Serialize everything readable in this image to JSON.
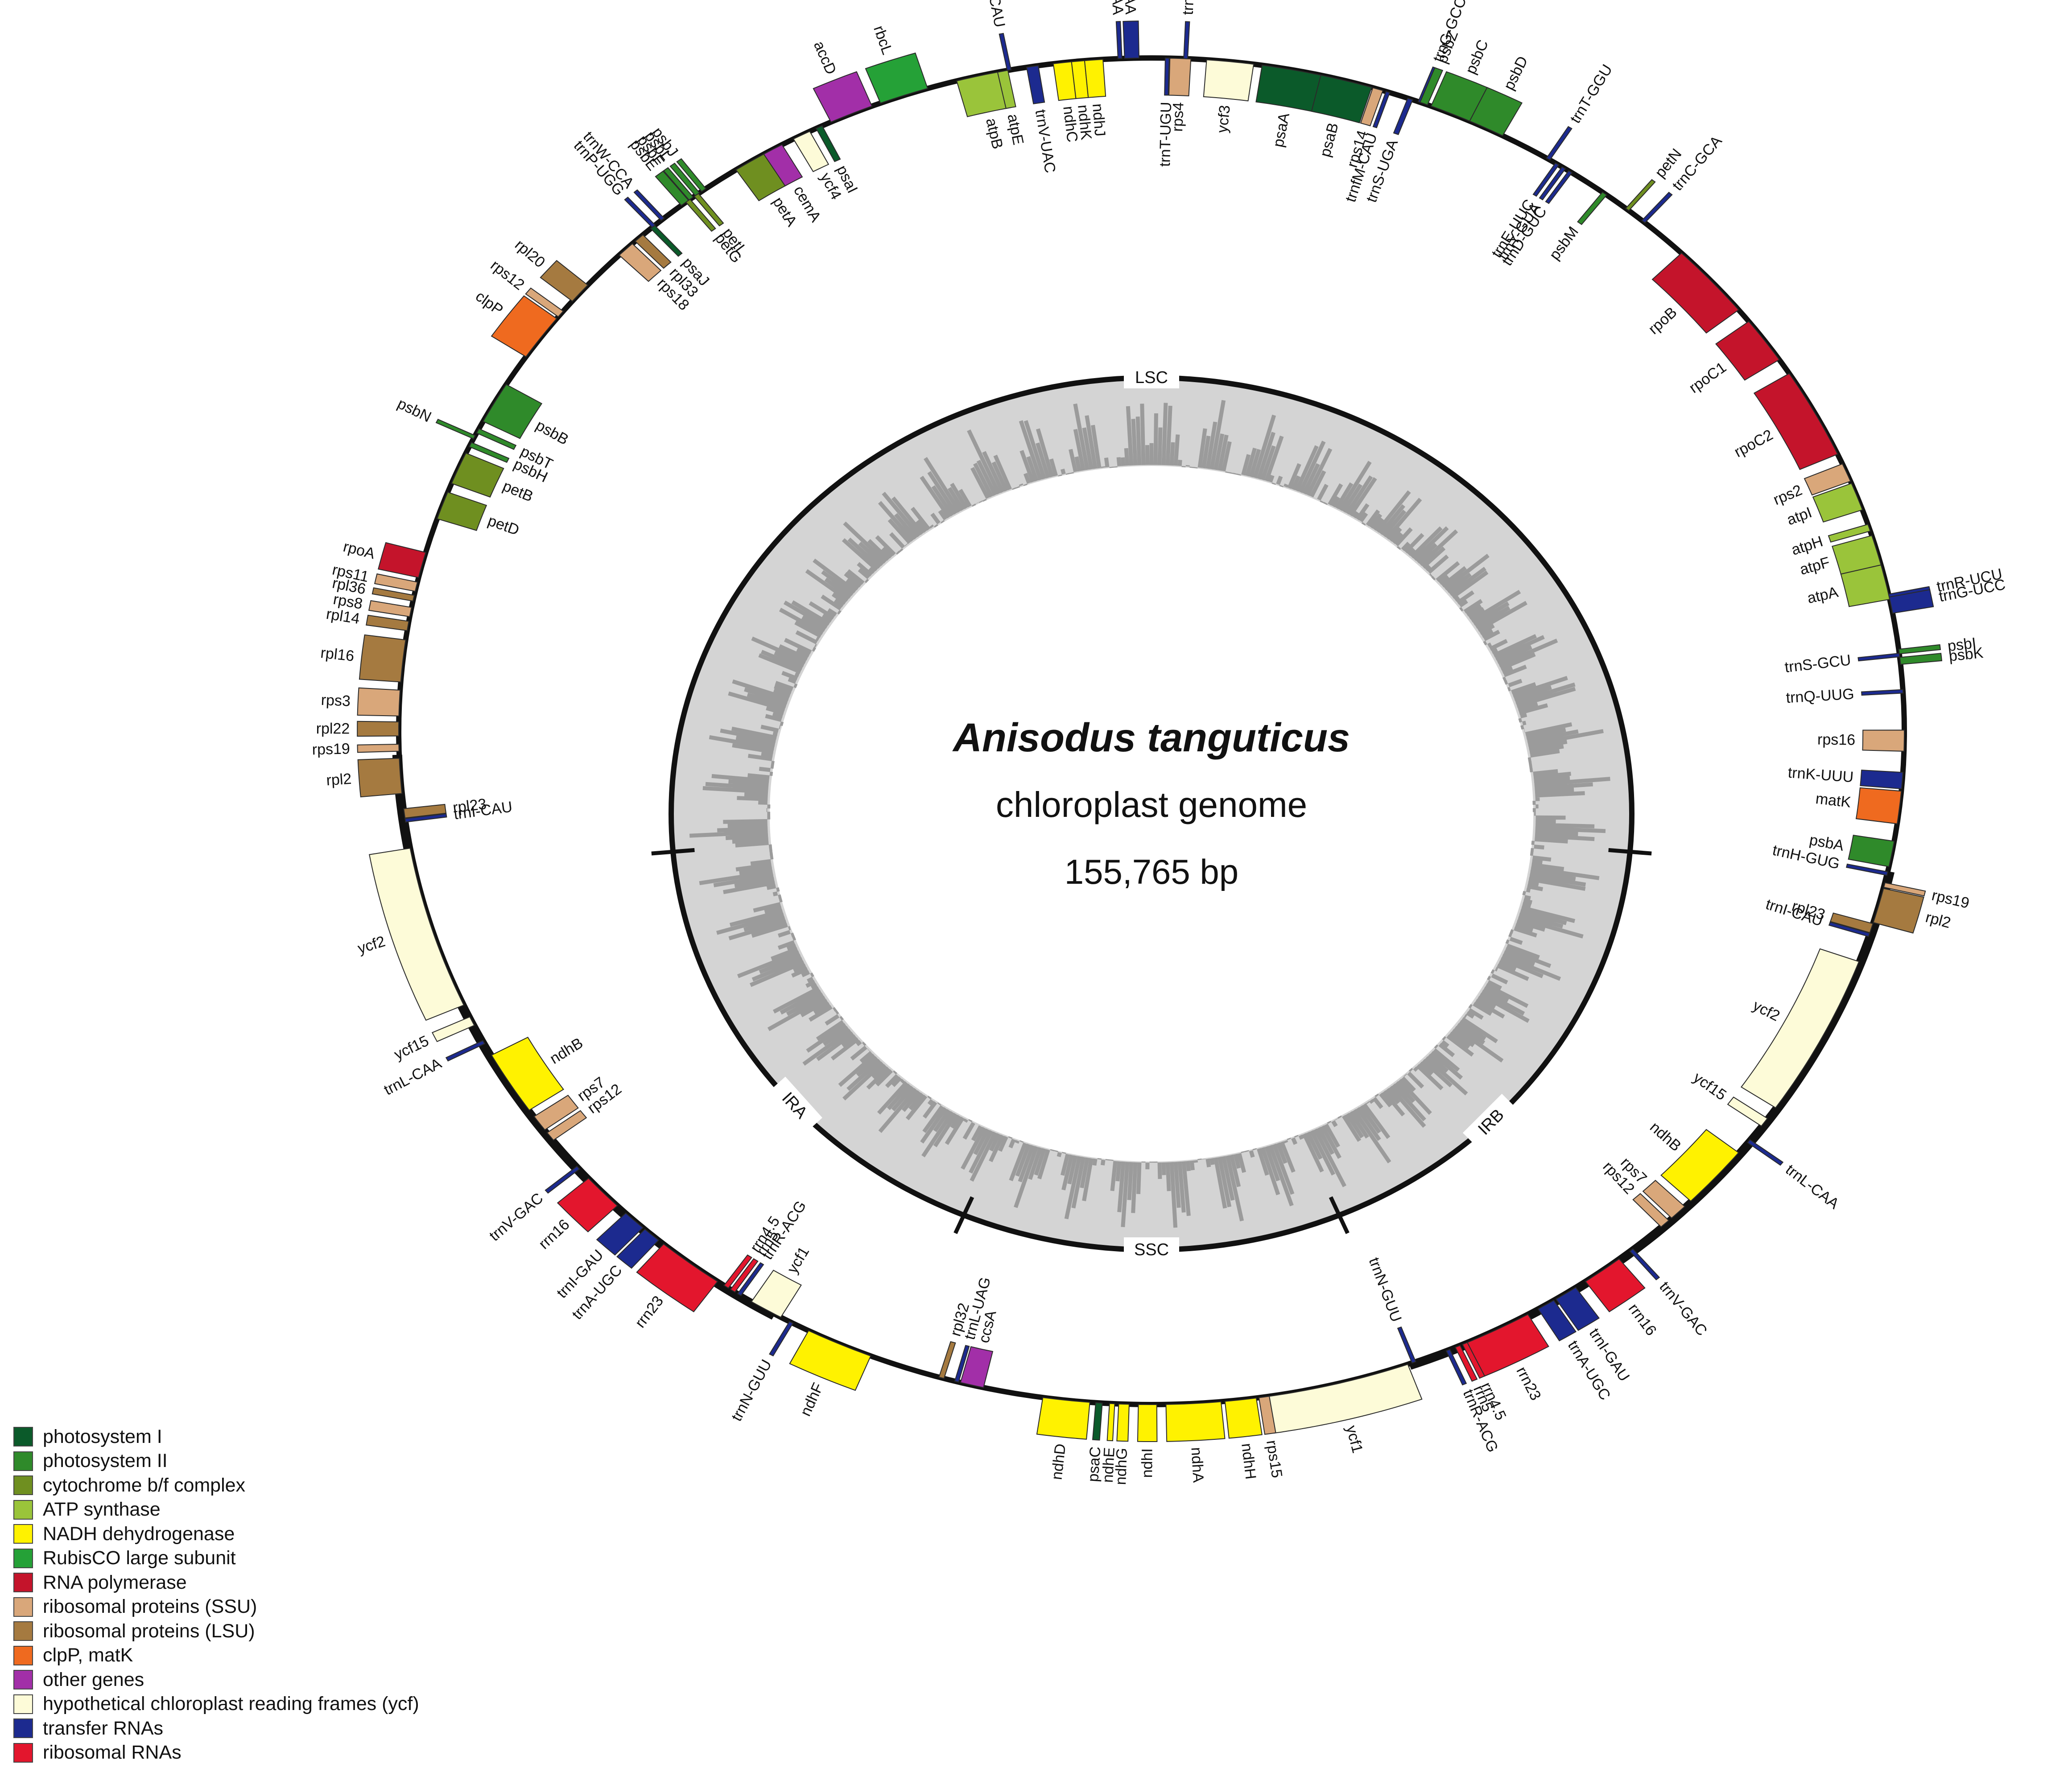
{
  "genome": {
    "species": "Anisodus tanguticus",
    "subtitle": "chloroplast genome",
    "size": "155,765 bp"
  },
  "regions": [
    "LSC",
    "IRB",
    "SSC",
    "IRA"
  ],
  "colors": {
    "psI": "#0b5a2a",
    "psII": "#2f8a2a",
    "cytb6f": "#6f8f20",
    "atp": "#9ac43a",
    "ndh": "#fff200",
    "rbcL": "#25a137",
    "rpo": "#c4142b",
    "ssu": "#d9a77a",
    "lsu": "#a57a40",
    "clp": "#ef6a1f",
    "other": "#a22fa8",
    "ycf": "#fdfbd8",
    "trna": "#1c2a8f",
    "rrna": "#e3162d"
  },
  "legend": [
    {
      "label": "photosystem I",
      "color": "#0b5a2a"
    },
    {
      "label": "photosystem II",
      "color": "#2f8a2a"
    },
    {
      "label": "cytochrome b/f complex",
      "color": "#6f8f20"
    },
    {
      "label": "ATP synthase",
      "color": "#9ac43a"
    },
    {
      "label": "NADH dehydrogenase",
      "color": "#fff200"
    },
    {
      "label": "RubisCO large subunit",
      "color": "#25a137"
    },
    {
      "label": "RNA polymerase",
      "color": "#c4142b"
    },
    {
      "label": "ribosomal proteins (SSU)",
      "color": "#d9a77a"
    },
    {
      "label": "ribosomal proteins (LSU)",
      "color": "#a57a40"
    },
    {
      "label": "clpP, matK",
      "color": "#ef6a1f"
    },
    {
      "label": "other genes",
      "color": "#a22fa8"
    },
    {
      "label": "hypothetical chloroplast reading frames (ycf)",
      "color": "#fdfbd8"
    },
    {
      "label": "transfer RNAs",
      "color": "#1c2a8f"
    },
    {
      "label": "ribosomal RNAs",
      "color": "#e3162d"
    }
  ],
  "genes": [
    {
      "name": "trnG-GCC",
      "a": 20.9,
      "w": 0.3,
      "t": "trna",
      "s": "out"
    },
    {
      "name": "psbZ",
      "a": 21.2,
      "w": 0.6,
      "t": "psII",
      "s": "out"
    },
    {
      "name": "psbC",
      "a": 23.4,
      "w": 3.2,
      "t": "psII",
      "s": "out"
    },
    {
      "name": "psbD",
      "a": 26.4,
      "w": 2.8,
      "t": "psII",
      "s": "out"
    },
    {
      "name": "trnT-GGU",
      "a": 31.8,
      "w": 0.3,
      "t": "trna",
      "s": "out"
    },
    {
      "name": "petN",
      "a": 39.2,
      "w": 0.3,
      "t": "cytb6f",
      "s": "out"
    },
    {
      "name": "trnC-GCA",
      "a": 40.8,
      "w": 0.3,
      "t": "trna",
      "s": "out"
    },
    {
      "name": "trnE-UUC",
      "a": 32.6,
      "w": 0.3,
      "t": "trna",
      "s": "in"
    },
    {
      "name": "trnY-GUA",
      "a": 33.2,
      "w": 0.3,
      "t": "trna",
      "s": "in"
    },
    {
      "name": "trnD-GUC",
      "a": 33.8,
      "w": 0.3,
      "t": "trna",
      "s": "in"
    },
    {
      "name": "psbM",
      "a": 37.0,
      "w": 0.4,
      "t": "psII",
      "s": "in"
    },
    {
      "name": "trnS-UGA",
      "a": 20.1,
      "w": 0.4,
      "t": "trna",
      "s": "in"
    },
    {
      "name": "rpoB",
      "a": 48.0,
      "w": 6.5,
      "t": "rpo",
      "s": "in"
    },
    {
      "name": "rpoC1",
      "a": 54.5,
      "w": 4.0,
      "t": "rpo",
      "s": "in"
    },
    {
      "name": "rpoC2",
      "a": 61.8,
      "w": 7.8,
      "t": "rpo",
      "s": "in"
    },
    {
      "name": "rps2",
      "a": 67.4,
      "w": 1.6,
      "t": "ssu",
      "s": "in"
    },
    {
      "name": "atpI",
      "a": 69.6,
      "w": 2.4,
      "t": "atp",
      "s": "in"
    },
    {
      "name": "atpH",
      "a": 72.4,
      "w": 0.6,
      "t": "atp",
      "s": "in"
    },
    {
      "name": "atpF",
      "a": 74.4,
      "w": 2.6,
      "t": "atp",
      "s": "in"
    },
    {
      "name": "atpA",
      "a": 77.2,
      "w": 3.0,
      "t": "atp",
      "s": "in"
    },
    {
      "name": "trnR-UCU",
      "a": 78.4,
      "w": 0.3,
      "t": "trna",
      "s": "out"
    },
    {
      "name": "trnG-UCC",
      "a": 79.2,
      "w": 1.4,
      "t": "trna",
      "s": "out"
    },
    {
      "name": "trnS-GCU",
      "a": 83.5,
      "w": 0.3,
      "t": "trna",
      "s": "in"
    },
    {
      "name": "psbI",
      "a": 83.2,
      "w": 0.4,
      "t": "psII",
      "s": "out"
    },
    {
      "name": "psbK",
      "a": 84.0,
      "w": 0.6,
      "t": "psII",
      "s": "out"
    },
    {
      "name": "trnQ-UUG",
      "a": 86.6,
      "w": 0.3,
      "t": "trna",
      "s": "in"
    },
    {
      "name": "rps16",
      "a": 90.8,
      "w": 1.8,
      "t": "ssu",
      "s": "in"
    },
    {
      "name": "trnK-UUU",
      "a": 94.2,
      "w": 1.4,
      "t": "trna",
      "s": "in"
    },
    {
      "name": "matK",
      "a": 96.5,
      "w": 2.8,
      "t": "clp",
      "s": "in"
    },
    {
      "name": "psbA",
      "a": 100.5,
      "w": 2.2,
      "t": "psII",
      "s": "in"
    },
    {
      "name": "trnH-GUG",
      "a": 102.2,
      "w": 0.3,
      "t": "trna",
      "s": "in"
    },
    {
      "name": "rps19",
      "a": 103.2,
      "w": 0.4,
      "t": "ssu",
      "s": "out"
    },
    {
      "name": "rpl2",
      "a": 105.0,
      "w": 3.0,
      "t": "lsu",
      "s": "out"
    },
    {
      "name": "rpl23",
      "a": 107.0,
      "w": 0.8,
      "t": "lsu",
      "s": "in"
    },
    {
      "name": "trnI-CAU",
      "a": 107.6,
      "w": 0.3,
      "t": "trna",
      "s": "in"
    },
    {
      "name": "ycf2",
      "a": 117.0,
      "w": 14.0,
      "t": "ycf",
      "s": "in"
    },
    {
      "name": "ycf15",
      "a": 125.5,
      "w": 0.8,
      "t": "ycf",
      "s": "in"
    },
    {
      "name": "trnL-CAA",
      "a": 127.5,
      "w": 0.3,
      "t": "trna",
      "s": "out"
    },
    {
      "name": "ndhB",
      "a": 131.5,
      "w": 5.5,
      "t": "ndh",
      "s": "in"
    },
    {
      "name": "rps7",
      "a": 135.6,
      "w": 1.4,
      "t": "ssu",
      "s": "in"
    },
    {
      "name": "rps12",
      "a": 137.0,
      "w": 0.8,
      "t": "ssu",
      "s": "in"
    },
    {
      "name": "trnV-GAC",
      "a": 140.4,
      "w": 0.3,
      "t": "trna",
      "s": "out"
    },
    {
      "name": "rrn16",
      "a": 143.2,
      "w": 3.2,
      "t": "rrna",
      "s": "out"
    },
    {
      "name": "trnI-GAU",
      "a": 146.6,
      "w": 1.8,
      "t": "trna",
      "s": "out"
    },
    {
      "name": "trnA-UGC",
      "a": 148.4,
      "w": 1.4,
      "t": "trna",
      "s": "out"
    },
    {
      "name": "rrn23",
      "a": 152.6,
      "w": 5.2,
      "t": "rrna",
      "s": "out"
    },
    {
      "name": "rrn4.5",
      "a": 155.4,
      "w": 0.4,
      "t": "rrna",
      "s": "out"
    },
    {
      "name": "rrn5",
      "a": 156.0,
      "w": 0.4,
      "t": "rrna",
      "s": "out"
    },
    {
      "name": "trnR-ACG",
      "a": 156.8,
      "w": 0.3,
      "t": "trna",
      "s": "out"
    },
    {
      "name": "trnN-GUU",
      "a": 159.6,
      "w": 0.3,
      "t": "trna",
      "s": "in"
    },
    {
      "name": "ycf1",
      "a": 165.6,
      "w": 11.0,
      "t": "ycf",
      "s": "out"
    },
    {
      "name": "rps15",
      "a": 171.4,
      "w": 0.8,
      "t": "ssu",
      "s": "out"
    },
    {
      "name": "ndhH",
      "a": 173.2,
      "w": 2.4,
      "t": "ndh",
      "s": "out"
    },
    {
      "name": "ndhA",
      "a": 176.8,
      "w": 4.2,
      "t": "ndh",
      "s": "out"
    },
    {
      "name": "ndhI",
      "a": 180.3,
      "w": 1.4,
      "t": "ndh",
      "s": "out"
    },
    {
      "name": "ndhG",
      "a": 182.1,
      "w": 0.8,
      "t": "ndh",
      "s": "out"
    },
    {
      "name": "ndhE",
      "a": 183.0,
      "w": 0.4,
      "t": "ndh",
      "s": "out"
    },
    {
      "name": "psaC",
      "a": 184.0,
      "w": 0.5,
      "t": "psI",
      "s": "out"
    },
    {
      "name": "ndhD",
      "a": 186.5,
      "w": 3.6,
      "t": "ndh",
      "s": "out"
    },
    {
      "name": "ccsA",
      "a": 193.8,
      "w": 1.8,
      "t": "other",
      "s": "in"
    },
    {
      "name": "trnL-UAG",
      "a": 195.0,
      "w": 0.3,
      "t": "trna",
      "s": "in"
    },
    {
      "name": "rpl32",
      "a": 196.2,
      "w": 0.4,
      "t": "lsu",
      "s": "in"
    },
    {
      "name": "ndhF",
      "a": 204.5,
      "w": 5.2,
      "t": "ndh",
      "s": "out"
    },
    {
      "name": "trnN-GUU",
      "a": 208.6,
      "w": 0.3,
      "t": "trna",
      "s": "out"
    },
    {
      "name": "ycf1",
      "a": 210.8,
      "w": 2.6,
      "t": "ycf",
      "s": "in"
    },
    {
      "name": "trnR-ACG",
      "a": 213.2,
      "w": 0.3,
      "t": "trna",
      "s": "in"
    },
    {
      "name": "rrn5",
      "a": 213.8,
      "w": 0.4,
      "t": "rrna",
      "s": "in"
    },
    {
      "name": "rrn4.5",
      "a": 214.4,
      "w": 0.4,
      "t": "rrna",
      "s": "in"
    },
    {
      "name": "rrn23",
      "a": 217.8,
      "w": 5.2,
      "t": "rrna",
      "s": "out"
    },
    {
      "name": "trnA-UGC",
      "a": 221.6,
      "w": 1.4,
      "t": "trna",
      "s": "out"
    },
    {
      "name": "trnI-GAU",
      "a": 223.4,
      "w": 1.8,
      "t": "trna",
      "s": "out"
    },
    {
      "name": "rrn16",
      "a": 226.8,
      "w": 3.2,
      "t": "rrna",
      "s": "out"
    },
    {
      "name": "trnV-GAC",
      "a": 229.6,
      "w": 0.3,
      "t": "trna",
      "s": "out"
    },
    {
      "name": "rps12",
      "a": 233.0,
      "w": 0.8,
      "t": "ssu",
      "s": "in"
    },
    {
      "name": "rps7",
      "a": 234.4,
      "w": 1.4,
      "t": "ssu",
      "s": "in"
    },
    {
      "name": "ndhB",
      "a": 238.5,
      "w": 5.5,
      "t": "ndh",
      "s": "in"
    },
    {
      "name": "trnL-CAA",
      "a": 242.5,
      "w": 0.3,
      "t": "trna",
      "s": "out"
    },
    {
      "name": "ycf15",
      "a": 244.5,
      "w": 0.8,
      "t": "ycf",
      "s": "out"
    },
    {
      "name": "ycf2",
      "a": 253.0,
      "w": 14.0,
      "t": "ycf",
      "s": "out"
    },
    {
      "name": "trnI-CAU",
      "a": 262.4,
      "w": 0.3,
      "t": "trna",
      "s": "in"
    },
    {
      "name": "rpl23",
      "a": 263.0,
      "w": 0.8,
      "t": "lsu",
      "s": "in"
    },
    {
      "name": "rpl2",
      "a": 266.2,
      "w": 3.0,
      "t": "lsu",
      "s": "out"
    },
    {
      "name": "rps19",
      "a": 268.6,
      "w": 0.6,
      "t": "ssu",
      "s": "out"
    },
    {
      "name": "rpl22",
      "a": 270.2,
      "w": 1.2,
      "t": "lsu",
      "s": "out"
    },
    {
      "name": "rps3",
      "a": 272.4,
      "w": 2.2,
      "t": "ssu",
      "s": "out"
    },
    {
      "name": "rpl16",
      "a": 276.0,
      "w": 3.6,
      "t": "lsu",
      "s": "out"
    },
    {
      "name": "rpl14",
      "a": 279.0,
      "w": 0.8,
      "t": "lsu",
      "s": "out"
    },
    {
      "name": "rps8",
      "a": 280.2,
      "w": 0.8,
      "t": "ssu",
      "s": "out"
    },
    {
      "name": "rpl36",
      "a": 281.4,
      "w": 0.5,
      "t": "lsu",
      "s": "out"
    },
    {
      "name": "rps11",
      "a": 282.4,
      "w": 0.8,
      "t": "ssu",
      "s": "out"
    },
    {
      "name": "rpoA",
      "a": 284.3,
      "w": 2.2,
      "t": "rpo",
      "s": "out"
    },
    {
      "name": "petD",
      "a": 289.6,
      "w": 2.4,
      "t": "cytb6f",
      "s": "in"
    },
    {
      "name": "petB",
      "a": 293.0,
      "w": 2.8,
      "t": "cytb6f",
      "s": "in"
    },
    {
      "name": "psbH",
      "a": 295.2,
      "w": 0.4,
      "t": "psII",
      "s": "in"
    },
    {
      "name": "psbN",
      "a": 295.9,
      "w": 0.3,
      "t": "psII",
      "s": "out"
    },
    {
      "name": "psbT",
      "a": 296.5,
      "w": 0.4,
      "t": "psII",
      "s": "in"
    },
    {
      "name": "psbB",
      "a": 299.2,
      "w": 3.6,
      "t": "psII",
      "s": "in"
    },
    {
      "name": "clpP",
      "a": 305.8,
      "w": 4.0,
      "t": "clp",
      "s": "out"
    },
    {
      "name": "rps12",
      "a": 308.3,
      "w": 0.6,
      "t": "ssu",
      "s": "out"
    },
    {
      "name": "rpl20",
      "a": 310.6,
      "w": 1.8,
      "t": "lsu",
      "s": "out"
    },
    {
      "name": "rps18",
      "a": 315.7,
      "w": 1.4,
      "t": "ssu",
      "s": "in"
    },
    {
      "name": "rpl33",
      "a": 317.1,
      "w": 0.8,
      "t": "lsu",
      "s": "in"
    },
    {
      "name": "psaJ",
      "a": 318.5,
      "w": 0.4,
      "t": "psI",
      "s": "in"
    },
    {
      "name": "trnP-UGG",
      "a": 318.6,
      "w": 0.3,
      "t": "trna",
      "s": "out"
    },
    {
      "name": "trnW-CCA",
      "a": 319.5,
      "w": 0.3,
      "t": "trna",
      "s": "out"
    },
    {
      "name": "psbE",
      "a": 321.7,
      "w": 0.7,
      "t": "psII",
      "s": "out"
    },
    {
      "name": "psbF",
      "a": 322.3,
      "w": 0.4,
      "t": "psII",
      "s": "out"
    },
    {
      "name": "psbL",
      "a": 322.9,
      "w": 0.4,
      "t": "psII",
      "s": "out"
    },
    {
      "name": "psbJ",
      "a": 323.5,
      "w": 0.4,
      "t": "psII",
      "s": "out"
    },
    {
      "name": "petG",
      "a": 322.0,
      "w": 0.4,
      "t": "cytb6f",
      "s": "in"
    },
    {
      "name": "petL",
      "a": 322.8,
      "w": 0.4,
      "t": "cytb6f",
      "s": "in"
    },
    {
      "name": "petA",
      "a": 327.8,
      "w": 2.6,
      "t": "cytb6f",
      "s": "in"
    },
    {
      "name": "cemA",
      "a": 329.8,
      "w": 1.6,
      "t": "other",
      "s": "in"
    },
    {
      "name": "ycf4",
      "a": 332.3,
      "w": 1.4,
      "t": "ycf",
      "s": "in"
    },
    {
      "name": "psaI",
      "a": 333.8,
      "w": 0.5,
      "t": "psI",
      "s": "in"
    },
    {
      "name": "accD",
      "a": 336.5,
      "w": 3.4,
      "t": "other",
      "s": "out"
    },
    {
      "name": "rbcL",
      "a": 340.8,
      "w": 3.8,
      "t": "rbcL",
      "s": "out"
    },
    {
      "name": "atpB",
      "a": 346.8,
      "w": 3.6,
      "t": "atp",
      "s": "in"
    },
    {
      "name": "atpE",
      "a": 348.6,
      "w": 0.8,
      "t": "atp",
      "s": "in"
    },
    {
      "name": "trnM-CAU",
      "a": 349.1,
      "w": 0.3,
      "t": "trna",
      "s": "out"
    },
    {
      "name": "trnV-UAC",
      "a": 350.9,
      "w": 0.9,
      "t": "trna",
      "s": "in"
    },
    {
      "name": "ndhC",
      "a": 353.2,
      "w": 1.4,
      "t": "ndh",
      "s": "in"
    },
    {
      "name": "ndhK",
      "a": 354.4,
      "w": 1.0,
      "t": "ndh",
      "s": "in"
    },
    {
      "name": "ndhJ",
      "a": 355.6,
      "w": 1.4,
      "t": "ndh",
      "s": "in"
    },
    {
      "name": "trnF-GAA",
      "a": 357.6,
      "w": 0.3,
      "t": "trna",
      "s": "out"
    },
    {
      "name": "trnL-UAA",
      "a": 358.5,
      "w": 1.1,
      "t": "trna",
      "s": "out"
    },
    {
      "name": "trnT-UGU",
      "a": 1.2,
      "w": 0.3,
      "t": "trna",
      "s": "in"
    },
    {
      "name": "rps4",
      "a": 2.2,
      "w": 1.6,
      "t": "ssu",
      "s": "in"
    },
    {
      "name": "trnS-GGA",
      "a": 2.6,
      "w": 0.3,
      "t": "trna",
      "s": "out"
    },
    {
      "name": "ycf3",
      "a": 6.0,
      "w": 3.6,
      "t": "ycf",
      "s": "in"
    },
    {
      "name": "psaA",
      "a": 10.9,
      "w": 4.9,
      "t": "psI",
      "s": "in"
    },
    {
      "name": "psaB",
      "a": 15.0,
      "w": 4.0,
      "t": "psI",
      "s": "in"
    },
    {
      "name": "rps14",
      "a": 17.5,
      "w": 0.8,
      "t": "ssu",
      "s": "in"
    },
    {
      "name": "trnfM-CAU",
      "a": 18.3,
      "w": 0.3,
      "t": "trna",
      "s": "in"
    }
  ]
}
